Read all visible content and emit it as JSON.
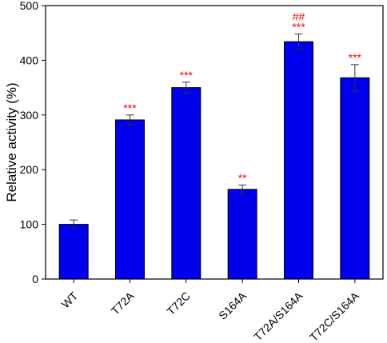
{
  "chart_data": {
    "type": "bar",
    "title": "",
    "xlabel": "",
    "ylabel": "Relative activity (%)",
    "ylim": [
      0,
      500
    ],
    "yticks": [
      0,
      100,
      200,
      300,
      400,
      500
    ],
    "categories": [
      "WT",
      "T72A",
      "T72C",
      "S164A",
      "T72A/S164A",
      "T72C/S164A"
    ],
    "values": [
      100,
      291,
      350,
      164,
      434,
      368
    ],
    "errors": [
      8,
      9,
      10,
      8,
      14,
      24
    ],
    "significance": [
      "",
      "***",
      "***",
      "**",
      "***",
      "***"
    ],
    "significance_extra": [
      "",
      "",
      "",
      "",
      "##",
      ""
    ],
    "bar_color": "#0000ee",
    "significance_color": "#ff0000",
    "grid": false,
    "legend": "none"
  }
}
